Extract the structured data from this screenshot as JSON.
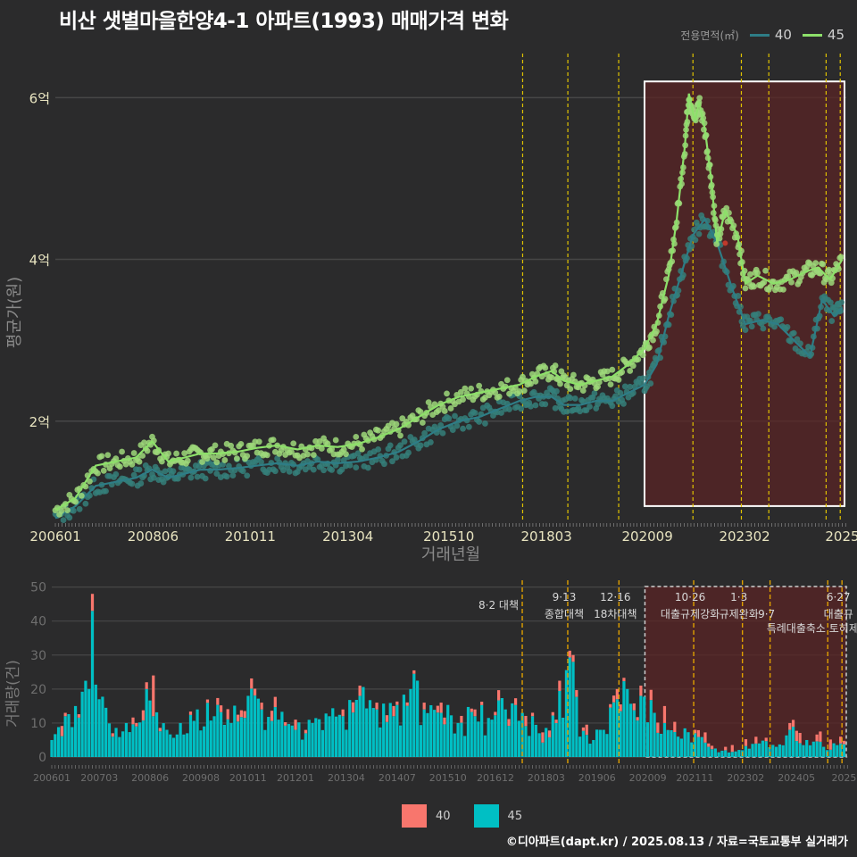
{
  "title": "비산 샛별마을한양4-1 아파트(1993) 매매가격 변화",
  "legend_top": {
    "title": "전용면적(㎡)",
    "items": [
      {
        "label": "40",
        "color": "#2e7d86"
      },
      {
        "label": "45",
        "color": "#8de06a"
      }
    ]
  },
  "legend_bottom": {
    "items": [
      {
        "label": "40",
        "color": "#f8766d"
      },
      {
        "label": "45",
        "color": "#00bfc4"
      }
    ]
  },
  "footer": "©디아파트(dapt.kr) / 2025.08.13 / 자료=국토교통부 실거래가",
  "colors": {
    "bg": "#2b2b2c",
    "grid": "#474747",
    "highlight_fill": "#5a2424",
    "policy_line": "#e0c300",
    "policy_line_bottom": "#e0a000"
  },
  "chart_data": [
    {
      "type": "line",
      "name": "price",
      "ylabel": "평균가(원)",
      "xlabel": "거래년월",
      "ylim": [
        0.75,
        6.6
      ],
      "y_unit": "억",
      "y_ticks": [
        {
          "v": 2,
          "label": "2억"
        },
        {
          "v": 4,
          "label": "4억"
        },
        {
          "v": 6,
          "label": "6억"
        }
      ],
      "x_range": [
        2006.0,
        2025.6
      ],
      "x_ticks": [
        {
          "v": 2006.0,
          "label": "200601"
        },
        {
          "v": 2008.42,
          "label": "200806"
        },
        {
          "v": 2010.83,
          "label": "201011"
        },
        {
          "v": 2013.25,
          "label": "201304"
        },
        {
          "v": 2015.75,
          "label": "201510"
        },
        {
          "v": 2018.17,
          "label": "201803"
        },
        {
          "v": 2020.67,
          "label": "202009"
        },
        {
          "v": 2023.08,
          "label": "202302"
        },
        {
          "v": 2025.5,
          "label": "2025"
        }
      ],
      "policy_lines": [
        2017.58,
        2018.7,
        2019.96,
        2021.8,
        2023.0,
        2023.68,
        2025.1,
        2025.45
      ],
      "highlight": {
        "x0": 2020.6,
        "x1": 2025.6,
        "y0": 0.95,
        "y1": 6.2
      },
      "series": [
        {
          "name": "45",
          "x": [
            2006.0,
            2006.5,
            2007.0,
            2007.5,
            2008.0,
            2008.4,
            2008.8,
            2009.2,
            2009.6,
            2010.0,
            2010.5,
            2011.0,
            2011.5,
            2012.0,
            2012.5,
            2013.0,
            2013.5,
            2014.0,
            2014.5,
            2015.0,
            2015.5,
            2016.0,
            2016.5,
            2017.0,
            2017.5,
            2017.9,
            2018.3,
            2018.6,
            2019.0,
            2019.4,
            2019.8,
            2020.2,
            2020.6,
            2020.9,
            2021.2,
            2021.4,
            2021.6,
            2021.7,
            2021.85,
            2021.95,
            2022.1,
            2022.25,
            2022.4,
            2022.6,
            2022.9,
            2023.1,
            2023.4,
            2023.8,
            2024.2,
            2024.6,
            2024.9,
            2025.2,
            2025.5
          ],
          "values": [
            0.9,
            1.05,
            1.45,
            1.5,
            1.55,
            1.75,
            1.5,
            1.55,
            1.6,
            1.6,
            1.62,
            1.67,
            1.7,
            1.65,
            1.7,
            1.68,
            1.72,
            1.8,
            1.9,
            2.05,
            2.2,
            2.3,
            2.35,
            2.4,
            2.45,
            2.55,
            2.62,
            2.5,
            2.45,
            2.5,
            2.55,
            2.7,
            2.9,
            3.2,
            3.8,
            4.5,
            5.4,
            6.05,
            5.7,
            5.95,
            5.6,
            5.0,
            4.2,
            4.6,
            4.3,
            3.7,
            3.8,
            3.7,
            3.75,
            3.85,
            3.9,
            3.75,
            4.0
          ]
        },
        {
          "name": "40",
          "x": [
            2006.0,
            2006.5,
            2007.0,
            2007.5,
            2008.0,
            2008.4,
            2008.8,
            2009.2,
            2009.6,
            2010.0,
            2010.5,
            2011.0,
            2011.5,
            2012.0,
            2012.5,
            2013.0,
            2013.5,
            2014.0,
            2014.5,
            2015.0,
            2015.5,
            2016.0,
            2016.5,
            2017.0,
            2017.5,
            2017.9,
            2018.3,
            2018.6,
            2019.0,
            2019.4,
            2019.8,
            2020.2,
            2020.6,
            2020.9,
            2021.2,
            2021.5,
            2021.8,
            2022.1,
            2022.4,
            2022.8,
            2023.1,
            2023.5,
            2023.9,
            2024.3,
            2024.7,
            2025.0,
            2025.3,
            2025.5
          ],
          "values": [
            0.8,
            0.95,
            1.2,
            1.25,
            1.3,
            1.4,
            1.3,
            1.35,
            1.4,
            1.4,
            1.42,
            1.45,
            1.48,
            1.45,
            1.5,
            1.48,
            1.5,
            1.55,
            1.62,
            1.75,
            1.9,
            2.0,
            2.05,
            2.15,
            2.25,
            2.3,
            2.3,
            2.2,
            2.2,
            2.25,
            2.25,
            2.35,
            2.45,
            2.7,
            3.3,
            3.8,
            4.3,
            4.5,
            4.2,
            3.6,
            3.2,
            3.25,
            3.2,
            3.0,
            2.8,
            3.5,
            3.3,
            3.4
          ]
        }
      ],
      "annotations": [
        {
          "x": 2022.6,
          "y": 4.2,
          "label": "•",
          "color": "#c0392b"
        }
      ]
    },
    {
      "type": "bar",
      "name": "volume",
      "ylabel": "거래량(건)",
      "ylim": [
        0,
        52
      ],
      "y_ticks": [
        0,
        10,
        20,
        30,
        40,
        50
      ],
      "x_range": [
        2006.0,
        2025.6
      ],
      "x_ticks": [
        {
          "v": 2006.0,
          "label": "200601"
        },
        {
          "v": 2007.17,
          "label": "200703"
        },
        {
          "v": 2008.42,
          "label": "200806"
        },
        {
          "v": 2009.67,
          "label": "200908"
        },
        {
          "v": 2010.83,
          "label": "201011"
        },
        {
          "v": 2012.0,
          "label": "201201"
        },
        {
          "v": 2013.25,
          "label": "201304"
        },
        {
          "v": 2014.5,
          "label": "201407"
        },
        {
          "v": 2015.75,
          "label": "201510"
        },
        {
          "v": 2016.92,
          "label": "201612"
        },
        {
          "v": 2018.17,
          "label": "201803"
        },
        {
          "v": 2019.42,
          "label": "201906"
        },
        {
          "v": 2020.67,
          "label": "202009"
        },
        {
          "v": 2021.83,
          "label": "202111"
        },
        {
          "v": 2023.08,
          "label": "202302"
        },
        {
          "v": 2024.33,
          "label": "202405"
        },
        {
          "v": 2025.5,
          "label": "2025"
        }
      ],
      "highlight": {
        "x0": 2020.6,
        "x1": 2025.6
      },
      "policy_lines": [
        2017.58,
        2018.7,
        2019.96,
        2021.8,
        2023.0,
        2023.68,
        2025.1,
        2025.45
      ],
      "policy_labels": [
        {
          "x": 2017.58,
          "line1": "8·2 대책",
          "line2": ""
        },
        {
          "x": 2018.7,
          "line1": "9·13",
          "line2": "종합대책"
        },
        {
          "x": 2019.96,
          "line1": "12·16",
          "line2": "18차대책"
        },
        {
          "x": 2021.8,
          "line1": "10·26",
          "line2": "대출규제강화"
        },
        {
          "x": 2023.0,
          "line1": "1·3",
          "line2": "규제완화"
        },
        {
          "x": 2023.68,
          "line1": "",
          "line2": "9·7"
        },
        {
          "x": 2025.1,
          "line1": "",
          "line2": "특례대출축소 토허제 해제"
        },
        {
          "x": 2025.45,
          "line1": "6·27",
          "line2": "대출규"
        }
      ],
      "series": [
        {
          "name": "45",
          "x": [
            2006.0,
            2006.3,
            2006.6,
            2006.9,
            2007.0,
            2007.2,
            2007.5,
            2007.8,
            2008.1,
            2008.3,
            2008.5,
            2008.8,
            2009.2,
            2009.6,
            2010.0,
            2010.4,
            2010.8,
            2011.2,
            2011.6,
            2012.0,
            2012.4,
            2012.8,
            2013.2,
            2013.6,
            2014.0,
            2014.4,
            2014.8,
            2015.2,
            2015.6,
            2016.0,
            2016.4,
            2016.8,
            2017.2,
            2017.6,
            2018.0,
            2018.4,
            2018.8,
            2019.0,
            2019.3,
            2019.6,
            2019.9,
            2020.2,
            2020.5,
            2020.8,
            2021.1,
            2021.4,
            2021.8,
            2022.2,
            2022.6,
            2023.0,
            2023.4,
            2023.8,
            2024.2,
            2024.6,
            2025.0,
            2025.4
          ],
          "values": [
            5,
            12,
            15,
            20,
            43,
            17,
            6,
            10,
            9,
            20,
            12,
            8,
            10,
            14,
            12,
            10,
            18,
            14,
            11,
            8,
            10,
            12,
            12,
            18,
            14,
            12,
            20,
            14,
            13,
            10,
            12,
            11,
            14,
            13,
            7,
            10,
            28,
            6,
            5,
            8,
            17,
            20,
            18,
            13,
            10,
            6,
            7,
            3,
            2,
            2,
            4,
            3,
            8,
            5,
            3,
            4
          ]
        },
        {
          "name": "40",
          "x": [
            2006.3,
            2007.0,
            2008.3,
            2008.5,
            2011.2,
            2013.6,
            2014.0,
            2015.2,
            2016.4,
            2018.8,
            2020.5,
            2021.1,
            2022.2,
            2024.2,
            2025.4
          ],
          "values": [
            1,
            5,
            2,
            12,
            2,
            3,
            2,
            2,
            2,
            2,
            3,
            5,
            1,
            2,
            2
          ]
        }
      ]
    }
  ]
}
